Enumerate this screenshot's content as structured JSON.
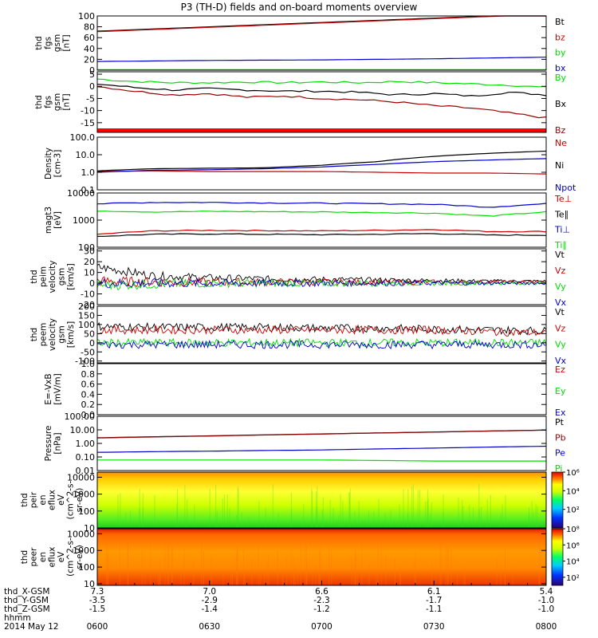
{
  "title": "P3 (TH-D) fields and on-board moments overview",
  "x_axis": {
    "ticks": [
      "0600",
      "0630",
      "0700",
      "0730",
      "0800"
    ],
    "ephemeris": [
      {
        "label": "thd_X-GSM",
        "values": [
          "7.3",
          "7.0",
          "6.6",
          "6.1",
          "5.4"
        ]
      },
      {
        "label": "thd_Y-GSM",
        "values": [
          "-3.5",
          "-2.9",
          "-2.3",
          "-1.7",
          "-1.0"
        ]
      },
      {
        "label": "thd_Z-GSM",
        "values": [
          "-1.5",
          "-1.4",
          "-1.2",
          "-1.1",
          "-1.0"
        ]
      },
      {
        "label": "hhmm",
        "values": []
      }
    ],
    "date": "2014 May 12"
  },
  "colors": {
    "black": "#000000",
    "red": "#cc0000",
    "green": "#00dd00",
    "blue": "#0000cc",
    "darkred": "#990000"
  },
  "chart_data": [
    {
      "type": "line",
      "ylabel": [
        "thd",
        "fgs",
        "gsm",
        "[nT]"
      ],
      "yticks": [
        "100",
        "80",
        "60",
        "40",
        "20",
        "0"
      ],
      "ylim": [
        0,
        100
      ],
      "x": [
        600,
        630,
        700,
        730,
        800
      ],
      "series": [
        {
          "name": "Bt",
          "color": "#000000",
          "values": [
            72,
            80,
            88,
            96,
            104
          ]
        },
        {
          "name": "bz",
          "color": "#cc0000",
          "values": [
            71,
            79,
            87,
            95,
            103
          ]
        },
        {
          "name": "by",
          "color": "#00dd00",
          "values": [
            1,
            1,
            1,
            1,
            1
          ]
        },
        {
          "name": "bx",
          "color": "#0000cc",
          "values": [
            16,
            18,
            19,
            21,
            24
          ]
        }
      ]
    },
    {
      "type": "line",
      "ylabel": [
        "thd",
        "fgs",
        "gsm",
        "[nT]"
      ],
      "yticks": [
        "5",
        "0",
        "-5",
        "-10",
        "-15"
      ],
      "ylim": [
        -19,
        6
      ],
      "x": [
        600,
        610,
        620,
        630,
        640,
        650,
        700,
        710,
        720,
        730,
        740,
        750,
        800
      ],
      "series": [
        {
          "name": "By",
          "color": "#00dd00",
          "values": [
            3,
            2,
            1.5,
            1.5,
            1.8,
            1.5,
            1.8,
            1.5,
            2,
            1.5,
            1,
            0.5,
            -0.5
          ]
        },
        {
          "name": "Bx",
          "color": "#000000",
          "values": [
            1,
            -0.5,
            -1.5,
            -1,
            -1.5,
            -2,
            -2,
            -2.5,
            -3.5,
            -3,
            -4,
            -2.5,
            -3.5
          ]
        },
        {
          "name": "Bz",
          "color": "#990000",
          "values": [
            0,
            -2,
            -3.5,
            -3,
            -4.5,
            -4,
            -5,
            -5.5,
            -6.5,
            -8,
            -9,
            -11,
            -13
          ]
        }
      ]
    },
    {
      "type": "line",
      "ylabel": [
        "Density",
        "[cm-3]"
      ],
      "yticks": [
        "100.0",
        "10.0",
        "1.0",
        "0.1"
      ],
      "ylim": [
        0.1,
        100
      ],
      "yscale": "log",
      "x": [
        600,
        615,
        630,
        645,
        700,
        715,
        730,
        745,
        800
      ],
      "series": [
        {
          "name": "Ne",
          "color": "#cc0000",
          "values": [
            1.1,
            1.2,
            1.1,
            1.1,
            1.1,
            1.0,
            0.9,
            0.9,
            0.8
          ]
        },
        {
          "name": "Ni",
          "color": "#000000",
          "values": [
            1.2,
            1.6,
            1.7,
            1.8,
            2.5,
            4,
            8,
            12,
            16
          ]
        },
        {
          "name": "Npot",
          "color": "#0000cc",
          "values": [
            1.0,
            1.3,
            1.4,
            1.6,
            2.0,
            2.8,
            4,
            5,
            6
          ]
        }
      ]
    },
    {
      "type": "line",
      "ylabel": [
        "magt3",
        "[eV]"
      ],
      "yticks": [
        "10000",
        "1000",
        "100"
      ],
      "ylim": [
        100,
        10000
      ],
      "yscale": "log",
      "x": [
        600,
        615,
        630,
        645,
        700,
        715,
        730,
        745,
        800
      ],
      "series": [
        {
          "name": "Te⊥",
          "color": "#cc0000",
          "values": [
            300,
            400,
            420,
            410,
            400,
            420,
            450,
            380,
            380
          ]
        },
        {
          "name": "Te∥",
          "color": "#000000",
          "values": [
            250,
            300,
            310,
            300,
            290,
            300,
            320,
            280,
            280
          ]
        },
        {
          "name": "Ti⊥",
          "color": "#0000cc",
          "values": [
            4000,
            4500,
            4500,
            4300,
            4200,
            4000,
            3800,
            3000,
            4000
          ]
        },
        {
          "name": "Ti∥",
          "color": "#00dd00",
          "values": [
            2200,
            2000,
            2100,
            2050,
            2000,
            1900,
            1800,
            1400,
            2000
          ]
        }
      ]
    },
    {
      "type": "line",
      "ylabel": [
        "thd",
        "peim",
        "velocity",
        "gsm",
        "[km/s]"
      ],
      "yticks": [
        "30",
        "20",
        "10",
        "0",
        "-10",
        "-20"
      ],
      "ylim": [
        -20,
        32
      ],
      "x": [
        600,
        615,
        630,
        645,
        700,
        715,
        730,
        745,
        800
      ],
      "series": [
        {
          "name": "Vt",
          "color": "#000000",
          "values": [
            15,
            7,
            5,
            4,
            3.5,
            3,
            2.5,
            2,
            2
          ]
        },
        {
          "name": "Vz",
          "color": "#cc0000",
          "values": [
            2,
            1,
            1,
            1,
            1,
            1,
            1,
            1,
            1
          ]
        },
        {
          "name": "Vy",
          "color": "#00dd00",
          "values": [
            -2,
            -1,
            0,
            0,
            0,
            0,
            0,
            0,
            0
          ]
        },
        {
          "name": "Vx",
          "color": "#0000cc",
          "values": [
            0,
            0,
            0,
            0,
            0,
            0,
            0,
            0,
            0
          ]
        }
      ]
    },
    {
      "type": "line",
      "ylabel": [
        "thd",
        "peem",
        "velocity",
        "gsm",
        "[km/s]"
      ],
      "yticks": [
        "200",
        "150",
        "100",
        "50",
        "0",
        "-50",
        "-100"
      ],
      "ylim": [
        -110,
        200
      ],
      "x": [
        600,
        615,
        630,
        645,
        700,
        715,
        730,
        745,
        800
      ],
      "series": [
        {
          "name": "Vt",
          "color": "#000000",
          "values": [
            90,
            85,
            85,
            85,
            80,
            80,
            75,
            70,
            65
          ]
        },
        {
          "name": "Vz",
          "color": "#cc0000",
          "values": [
            70,
            70,
            70,
            70,
            70,
            70,
            70,
            60,
            55
          ]
        },
        {
          "name": "Vy",
          "color": "#00dd00",
          "values": [
            0,
            0,
            0,
            0,
            0,
            0,
            0,
            0,
            0
          ]
        },
        {
          "name": "Vx",
          "color": "#0000cc",
          "values": [
            -10,
            -10,
            -10,
            -10,
            -10,
            -10,
            -10,
            -10,
            -10
          ]
        }
      ]
    },
    {
      "type": "line",
      "ylabel": [
        "E=-VxB",
        "[mV/m]"
      ],
      "yticks": [
        "1.0",
        "0.8",
        "0.6",
        "0.4",
        "0.2",
        "0.0"
      ],
      "ylim": [
        0,
        1
      ],
      "legend": [
        {
          "name": "Ez",
          "color": "#cc0000"
        },
        {
          "name": "Ey",
          "color": "#00dd00"
        },
        {
          "name": "Ex",
          "color": "#0000cc"
        }
      ],
      "series": []
    },
    {
      "type": "line",
      "ylabel": [
        "Pressure",
        "[nPa]"
      ],
      "yticks": [
        "100.00",
        "10.00",
        "1.00",
        "0.10",
        "0.01"
      ],
      "ylim": [
        0.01,
        100
      ],
      "yscale": "log",
      "x": [
        600,
        630,
        700,
        730,
        800
      ],
      "series": [
        {
          "name": "Pt",
          "color": "#000000",
          "values": [
            2.6,
            3.6,
            5.0,
            6.9,
            9.6
          ]
        },
        {
          "name": "Pb",
          "color": "#990000",
          "values": [
            2.5,
            3.5,
            4.9,
            6.8,
            9.5
          ]
        },
        {
          "name": "Pe",
          "color": "#0000cc",
          "values": [
            0.22,
            0.27,
            0.33,
            0.45,
            0.62
          ]
        },
        {
          "name": "Pi",
          "color": "#00dd00",
          "values": [
            0.06,
            0.06,
            0.06,
            0.05,
            0.05
          ]
        }
      ]
    },
    {
      "type": "heatmap",
      "ylabel": [
        "thd",
        "peir",
        "en",
        "eflux",
        "eV",
        "(cm^2-s-",
        "sr-eV)"
      ],
      "yticks": [
        "10000",
        "1000",
        "100",
        "10"
      ],
      "ylim": [
        10,
        20000
      ],
      "yscale": "log",
      "colorbar_ticks": [
        "10⁶",
        "10⁴",
        "10²"
      ],
      "colorbar_range": [
        1,
        1000000
      ]
    },
    {
      "type": "heatmap",
      "ylabel": [
        "thd",
        "peer",
        "en",
        "eflux",
        "eV",
        "(cm^2-s-",
        "sr-eV)"
      ],
      "yticks": [
        "10000",
        "1000",
        "100",
        "10"
      ],
      "ylim": [
        8,
        20000
      ],
      "yscale": "log",
      "colorbar_ticks": [
        "10⁸",
        "10⁶",
        "10⁴",
        "10²"
      ],
      "colorbar_range": [
        10,
        100000000
      ]
    }
  ]
}
